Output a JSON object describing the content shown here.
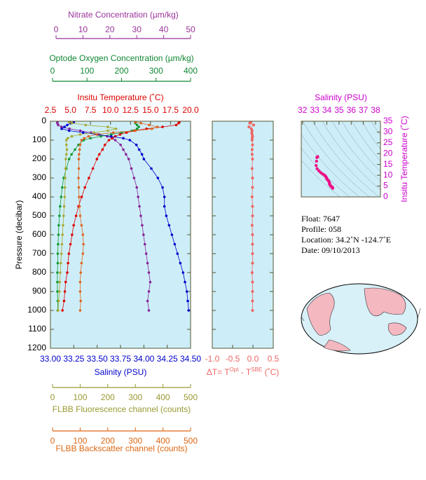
{
  "chart_data": [
    {
      "type": "line",
      "ylabel": "Pressure (decibar)",
      "ylim": [
        0,
        1200
      ],
      "y_inverted": true,
      "yticks": [
        0,
        100,
        200,
        300,
        400,
        500,
        600,
        700,
        800,
        900,
        1000,
        1100,
        1200
      ],
      "y": [
        5,
        10,
        20,
        30,
        40,
        50,
        60,
        70,
        80,
        90,
        100,
        125,
        150,
        175,
        200,
        250,
        300,
        350,
        400,
        450,
        500,
        550,
        600,
        650,
        700,
        750,
        800,
        850,
        900,
        950,
        1000
      ],
      "background": "#cdeef8",
      "x_axes": [
        {
          "label": "Nitrate Concentration (µm/kg)",
          "color": "#993399",
          "series_color": "#882299",
          "xlim": [
            0,
            50
          ],
          "xticks": [
            0,
            10,
            20,
            30,
            40,
            50
          ],
          "values": [
            0.5,
            0.5,
            0.8,
            2,
            5,
            9,
            13,
            16,
            19,
            21,
            22,
            24,
            25,
            26,
            27,
            28,
            29,
            30,
            30.5,
            31,
            31.5,
            32,
            32.5,
            33,
            33.5,
            34,
            34.5,
            35,
            34.5,
            34,
            34.5
          ]
        },
        {
          "label": "Optode Oxygen Concentration (µm/kg)",
          "color": "#118833",
          "series_color": "#119933",
          "xlim": [
            0,
            400
          ],
          "xticks": [
            0,
            100,
            200,
            300,
            400
          ],
          "values": [
            240,
            240,
            245,
            250,
            245,
            230,
            200,
            170,
            140,
            110,
            90,
            75,
            65,
            55,
            48,
            40,
            32,
            28,
            25,
            22,
            20,
            18,
            17,
            16,
            15,
            15,
            14,
            14,
            14,
            15,
            15
          ]
        },
        {
          "label": "Insitu Temperature (˚C)",
          "color": "#dd0000",
          "series_color": "#dd0000",
          "xlim": [
            2.5,
            20
          ],
          "xticks": [
            2.5,
            {
              "value": 5,
              "label": "5.0"
            },
            7.5,
            {
              "value": 10,
              "label": "10.0"
            },
            12.5,
            {
              "value": 15,
              "label": "15.0"
            },
            17.5,
            {
              "value": 20,
              "label": "20.0"
            }
          ],
          "values": [
            18.6,
            18.5,
            18.2,
            16.5,
            14.5,
            13.0,
            12.0,
            11.2,
            10.6,
            10.2,
            9.8,
            9.3,
            9.0,
            8.6,
            8.3,
            7.8,
            7.3,
            6.8,
            6.4,
            6.0,
            5.7,
            5.4,
            5.2,
            5.0,
            4.8,
            4.7,
            4.6,
            4.4,
            4.3,
            4.2,
            4.0
          ]
        },
        {
          "label": "Salinity (PSU)",
          "color": "#0000cc",
          "series_color": "#0000cc",
          "xlim": [
            33,
            34.5
          ],
          "xticks": [
            {
              "value": 33,
              "label": "33.00"
            },
            33.25,
            {
              "value": 33.5,
              "label": "33.50"
            },
            33.75,
            {
              "value": 34,
              "label": "34.00"
            },
            34.25,
            {
              "value": 34.5,
              "label": "34.50"
            }
          ],
          "values": [
            33.25,
            33.22,
            33.18,
            33.15,
            33.12,
            33.2,
            33.35,
            33.5,
            33.65,
            33.78,
            33.85,
            33.92,
            33.95,
            33.98,
            34.0,
            34.08,
            34.15,
            34.2,
            34.22,
            34.22,
            34.24,
            34.27,
            34.3,
            34.33,
            34.36,
            34.39,
            34.42,
            34.44,
            34.46,
            34.47,
            34.48
          ]
        },
        {
          "label": "FLBB Fluorescence channel (counts)",
          "color": "#999933",
          "series_color": "#aaaa33",
          "xlim": [
            0,
            500
          ],
          "xticks": [
            0,
            100,
            200,
            300,
            400,
            500
          ],
          "values": [
            60,
            70,
            120,
            200,
            230,
            200,
            150,
            100,
            70,
            55,
            50,
            50,
            52,
            50,
            48,
            47,
            46,
            45,
            44,
            42,
            40,
            38,
            36,
            34,
            32,
            30,
            28,
            26,
            25,
            22,
            20
          ]
        },
        {
          "label": "FLBB Backscatter channel (counts)",
          "color": "#dd6611",
          "series_color": "#dd6622",
          "xlim": [
            0,
            500
          ],
          "xticks": [
            0,
            100,
            200,
            300,
            400,
            500
          ],
          "values": [
            300,
            320,
            350,
            380,
            360,
            300,
            220,
            160,
            130,
            115,
            105,
            100,
            98,
            96,
            95,
            95,
            94,
            95,
            96,
            98,
            100,
            105,
            110,
            112,
            110,
            105,
            102,
            100,
            100,
            102,
            100
          ]
        }
      ]
    },
    {
      "type": "line",
      "xlabel": [
        "ΔT= T",
        "Opt",
        " - T",
        "SBE",
        " (˚C)"
      ],
      "color": "#ee6666",
      "background": "#cdeef8",
      "xlim": [
        -1,
        0.5
      ],
      "xticks": [
        {
          "value": -1,
          "label": "-1.0"
        },
        -0.5,
        {
          "value": 0,
          "label": "0.0"
        },
        0.5
      ],
      "ylim": [
        0,
        1200
      ],
      "y_inverted": true,
      "yticks": [
        0,
        100,
        200,
        300,
        400,
        500,
        600,
        700,
        800,
        900,
        1000,
        1100,
        1200
      ],
      "y": [
        5,
        10,
        20,
        30,
        40,
        50,
        60,
        70,
        80,
        90,
        100,
        125,
        150,
        175,
        200,
        250,
        300,
        350,
        400,
        450,
        500,
        550,
        600,
        650,
        700,
        750,
        800,
        850,
        900,
        950,
        1000
      ],
      "values": [
        -0.05,
        -0.08,
        0.02,
        -0.1,
        -0.04,
        -0.02,
        -0.03,
        -0.02,
        -0.01,
        -0.02,
        -0.02,
        -0.01,
        -0.02,
        -0.02,
        -0.01,
        -0.02,
        -0.01,
        -0.01,
        -0.02,
        -0.01,
        -0.01,
        -0.02,
        -0.01,
        -0.01,
        -0.01,
        -0.01,
        -0.02,
        -0.01,
        -0.01,
        -0.01,
        -0.01
      ]
    },
    {
      "type": "scatter",
      "xlabel": "Salinity (PSU)",
      "ylabel": "Insitu Temperature (˚C)",
      "color": "#ee1188",
      "axis_color": "#cc00cc",
      "background": "#cdeef8",
      "xlim": [
        31.9,
        38.4
      ],
      "xticks": [
        32,
        33,
        34,
        35,
        36,
        37,
        38
      ],
      "ylim": [
        0,
        35
      ],
      "yticks": [
        0,
        5,
        10,
        15,
        20,
        25,
        30,
        35
      ],
      "x": [
        33.25,
        33.22,
        33.18,
        33.15,
        33.12,
        33.2,
        33.35,
        33.5,
        33.65,
        33.78,
        33.85,
        33.92,
        33.95,
        33.98,
        34.0,
        34.08,
        34.15,
        34.2,
        34.22,
        34.22,
        34.24,
        34.27,
        34.3,
        34.33,
        34.36,
        34.39,
        34.42,
        34.44,
        34.46,
        34.47,
        34.48
      ],
      "y": [
        18.6,
        18.5,
        18.2,
        16.5,
        14.5,
        13.0,
        12.0,
        11.2,
        10.6,
        10.2,
        9.8,
        9.3,
        9.0,
        8.6,
        8.3,
        7.8,
        7.3,
        6.8,
        6.4,
        6.0,
        5.7,
        5.4,
        5.2,
        5.0,
        4.8,
        4.7,
        4.6,
        4.4,
        4.3,
        4.2,
        4.0
      ]
    }
  ],
  "info": [
    "Float:  7647",
    "Profile:  058",
    "Location:  34.2˚N  -124.7˚E",
    "Date:  09/10/2013"
  ]
}
